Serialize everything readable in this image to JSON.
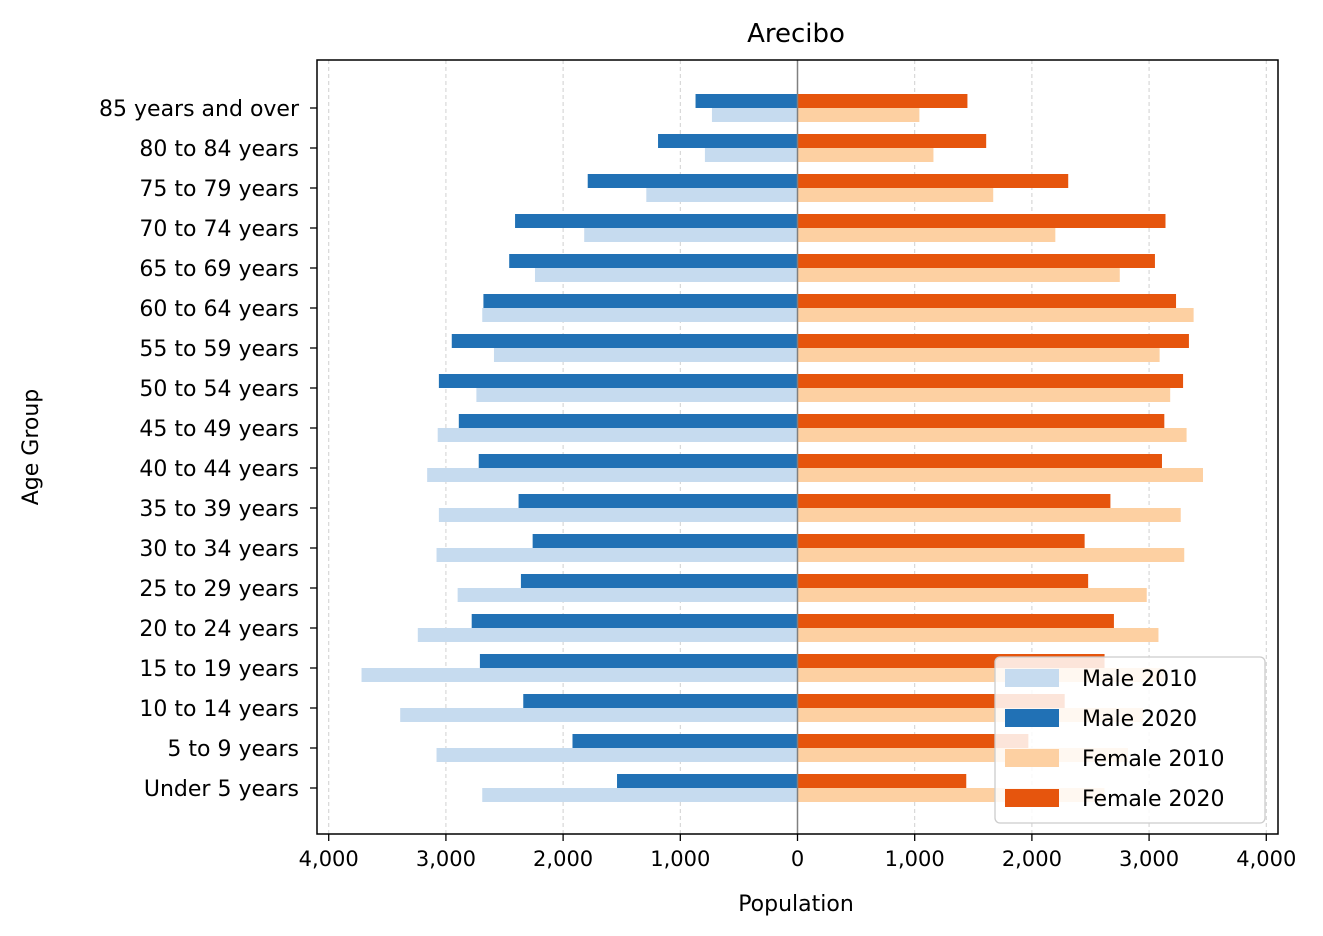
{
  "chart_data": {
    "type": "bar",
    "orientation": "horizontal",
    "title": "Arecibo",
    "xlabel": "Population",
    "ylabel": "Age Group",
    "xlim": [
      -4100,
      4100
    ],
    "xticks": [
      -4000,
      -3000,
      -2000,
      -1000,
      0,
      1000,
      2000,
      3000,
      4000
    ],
    "xtick_labels": [
      "4,000",
      "3,000",
      "2,000",
      "1,000",
      "0",
      "1,000",
      "2,000",
      "3,000",
      "4,000"
    ],
    "grid": "vertical dashed",
    "legend_position": "lower-right",
    "categories": [
      "Under 5 years",
      "5 to 9 years",
      "10 to 14 years",
      "15 to 19 years",
      "20 to 24 years",
      "25 to 29 years",
      "30 to 34 years",
      "35 to 39 years",
      "40 to 44 years",
      "45 to 49 years",
      "50 to 54 years",
      "55 to 59 years",
      "60 to 64 years",
      "65 to 69 years",
      "70 to 74 years",
      "75 to 79 years",
      "80 to 84 years",
      "85 years and over"
    ],
    "series": [
      {
        "name": "Male 2010",
        "color": "#c6dbef",
        "values": [
          -2690,
          -3080,
          -3390,
          -3720,
          -3240,
          -2900,
          -3080,
          -3060,
          -3160,
          -3070,
          -2740,
          -2590,
          -2690,
          -2240,
          -1820,
          -1290,
          -790,
          -730
        ]
      },
      {
        "name": "Male 2020",
        "color": "#2171b5",
        "values": [
          -1540,
          -1920,
          -2340,
          -2710,
          -2780,
          -2360,
          -2260,
          -2380,
          -2720,
          -2890,
          -3060,
          -2950,
          -2680,
          -2460,
          -2410,
          -1790,
          -1190,
          -870
        ]
      },
      {
        "name": "Female 2010",
        "color": "#fdd0a2",
        "values": [
          2620,
          2820,
          2950,
          3130,
          3080,
          2980,
          3300,
          3270,
          3460,
          3320,
          3180,
          3090,
          3380,
          2750,
          2200,
          1670,
          1160,
          1040
        ]
      },
      {
        "name": "Female 2020",
        "color": "#e6550d",
        "values": [
          1440,
          1970,
          2280,
          2620,
          2700,
          2480,
          2450,
          2670,
          3110,
          3130,
          3290,
          3340,
          3230,
          3050,
          3140,
          2310,
          1610,
          1450
        ]
      }
    ]
  }
}
